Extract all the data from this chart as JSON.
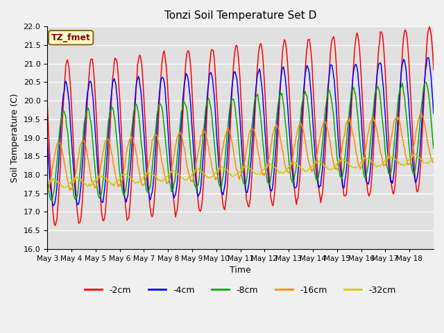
{
  "title": "Tonzi Soil Temperature Set D",
  "xlabel": "Time",
  "ylabel": "Soil Temperature (C)",
  "ylim": [
    16.0,
    22.0
  ],
  "yticks": [
    16.0,
    16.5,
    17.0,
    17.5,
    18.0,
    18.5,
    19.0,
    19.5,
    20.0,
    20.5,
    21.0,
    21.5,
    22.0
  ],
  "x_tick_labels": [
    "May 3",
    "May 4",
    "May 5",
    "May 6",
    "May 7",
    "May 8",
    "May 9",
    "May 10",
    "May 11",
    "May 12",
    "May 13",
    "May 14",
    "May 15",
    "May 16",
    "May 17",
    "May 18"
  ],
  "label_annotation": "TZ_fmet",
  "label_box_color": "#ffffcc",
  "label_box_edge": "#8B6914",
  "series_colors": [
    "#ff0000",
    "#0000ff",
    "#00aa00",
    "#ff8800",
    "#cccc00"
  ],
  "series_labels": [
    "-2cm",
    "-4cm",
    "-8cm",
    "-16cm",
    "-32cm"
  ],
  "bg_color": "#e0e0e0",
  "grid_color": "#ffffff",
  "n_points": 480,
  "days": 16
}
